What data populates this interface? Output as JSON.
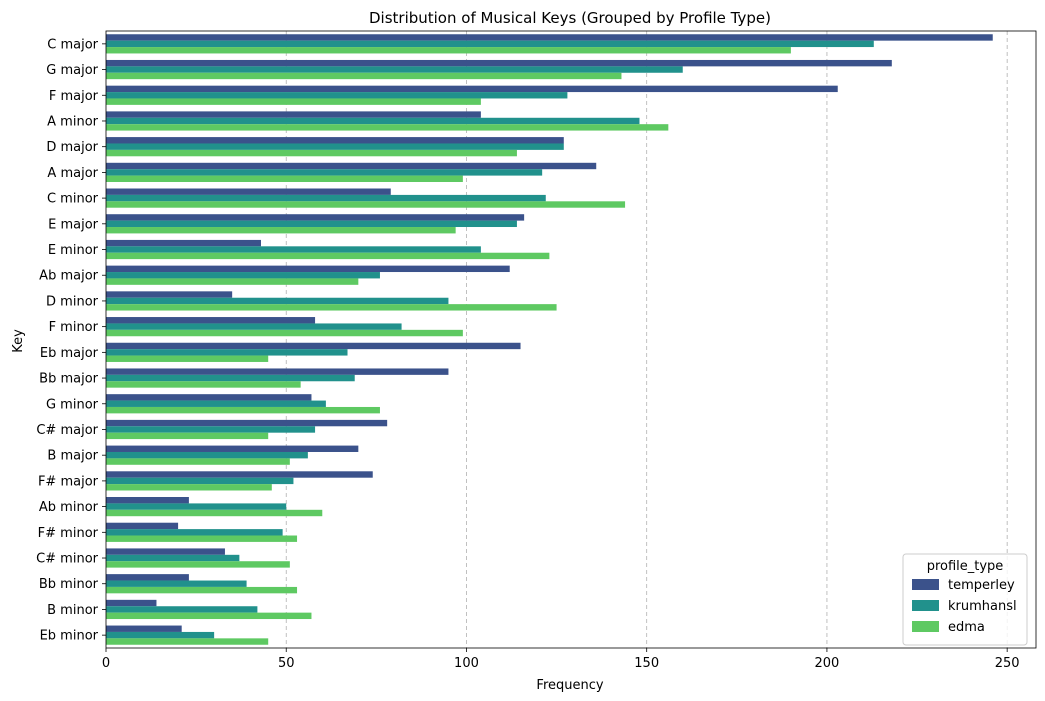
{
  "chart_data": {
    "type": "bar",
    "orientation": "horizontal",
    "title": "Distribution of Musical Keys (Grouped by Profile Type)",
    "xlabel": "Frequency",
    "ylabel": "Key",
    "xlim": [
      0,
      258
    ],
    "xticks": [
      0,
      50,
      100,
      150,
      200,
      250
    ],
    "grid": "vertical-dashed",
    "legend": {
      "title": "profile_type",
      "placement": "lower-right"
    },
    "categories": [
      "C major",
      "G major",
      "F major",
      "A minor",
      "D major",
      "A major",
      "C minor",
      "E major",
      "E minor",
      "Ab major",
      "D minor",
      "F minor",
      "Eb major",
      "Bb major",
      "G minor",
      "C# major",
      "B major",
      "F# major",
      "Ab minor",
      "F# minor",
      "C# minor",
      "Bb minor",
      "B minor",
      "Eb minor"
    ],
    "series": [
      {
        "name": "temperley",
        "color": "#3b528b",
        "values": [
          246,
          218,
          203,
          104,
          127,
          136,
          79,
          116,
          43,
          112,
          35,
          58,
          115,
          95,
          57,
          78,
          70,
          74,
          23,
          20,
          33,
          23,
          14,
          21
        ]
      },
      {
        "name": "krumhansl",
        "color": "#21918c",
        "values": [
          213,
          160,
          128,
          148,
          127,
          121,
          122,
          114,
          104,
          76,
          95,
          82,
          67,
          69,
          61,
          58,
          56,
          52,
          50,
          49,
          37,
          39,
          42,
          30
        ]
      },
      {
        "name": "edma",
        "color": "#5ec962",
        "values": [
          190,
          143,
          104,
          156,
          114,
          99,
          144,
          97,
          123,
          70,
          125,
          99,
          45,
          54,
          76,
          45,
          51,
          46,
          60,
          53,
          51,
          53,
          57,
          45
        ]
      }
    ]
  }
}
